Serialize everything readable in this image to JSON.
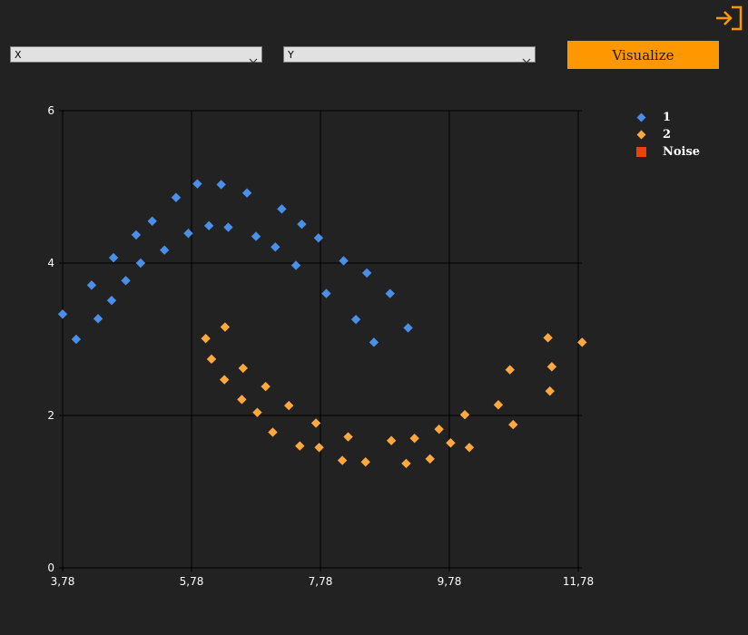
{
  "header": {
    "x_select": {
      "value": "X"
    },
    "y_select": {
      "value": "Y"
    },
    "visualize_label": "Visualize",
    "exit_icon": "sign-in-icon"
  },
  "colors": {
    "background": "#222222",
    "accent": "#ff9800",
    "cluster_1": "#4a8fe8",
    "cluster_2": "#ffa83e",
    "noise": "#e8420d"
  },
  "legend": [
    {
      "label": "1",
      "marker": "diamond",
      "color": "#4a8fe8"
    },
    {
      "label": "2",
      "marker": "diamond",
      "color": "#ffa83e"
    },
    {
      "label": "Noise",
      "marker": "square",
      "color": "#e8420d"
    }
  ],
  "chart_data": {
    "type": "scatter",
    "title": "",
    "xlabel": "",
    "ylabel": "",
    "xlim": [
      3.78,
      11.78
    ],
    "ylim": [
      0,
      6
    ],
    "x_ticks": [
      "3,78",
      "5,78",
      "7,78",
      "9,78",
      "11,78"
    ],
    "y_ticks": [
      "0",
      "2",
      "4",
      "6"
    ],
    "grid": true,
    "legend_position": "right",
    "series": [
      {
        "name": "1",
        "color": "#4a8fe8",
        "points": [
          [
            3.78,
            3.33
          ],
          [
            3.99,
            3.0
          ],
          [
            4.23,
            3.71
          ],
          [
            4.33,
            3.27
          ],
          [
            4.54,
            3.51
          ],
          [
            4.57,
            4.07
          ],
          [
            4.76,
            3.77
          ],
          [
            4.92,
            4.37
          ],
          [
            4.99,
            4.0
          ],
          [
            5.17,
            4.55
          ],
          [
            5.36,
            4.17
          ],
          [
            5.54,
            4.86
          ],
          [
            5.73,
            4.39
          ],
          [
            5.87,
            5.04
          ],
          [
            6.05,
            4.49
          ],
          [
            6.24,
            5.03
          ],
          [
            6.35,
            4.47
          ],
          [
            6.64,
            4.92
          ],
          [
            6.78,
            4.35
          ],
          [
            7.08,
            4.21
          ],
          [
            7.18,
            4.71
          ],
          [
            7.4,
            3.97
          ],
          [
            7.49,
            4.51
          ],
          [
            7.75,
            4.33
          ],
          [
            7.87,
            3.6
          ],
          [
            8.14,
            4.03
          ],
          [
            8.33,
            3.26
          ],
          [
            8.5,
            3.87
          ],
          [
            8.61,
            2.96
          ],
          [
            8.86,
            3.6
          ],
          [
            9.14,
            3.15
          ]
        ]
      },
      {
        "name": "2",
        "color": "#ffa83e",
        "points": [
          [
            6.0,
            3.01
          ],
          [
            6.09,
            2.74
          ],
          [
            6.29,
            2.47
          ],
          [
            6.3,
            3.16
          ],
          [
            6.56,
            2.21
          ],
          [
            6.58,
            2.62
          ],
          [
            6.8,
            2.04
          ],
          [
            6.93,
            2.38
          ],
          [
            7.04,
            1.78
          ],
          [
            7.29,
            2.13
          ],
          [
            7.46,
            1.6
          ],
          [
            7.71,
            1.9
          ],
          [
            7.76,
            1.58
          ],
          [
            8.12,
            1.41
          ],
          [
            8.21,
            1.72
          ],
          [
            8.48,
            1.39
          ],
          [
            8.88,
            1.67
          ],
          [
            9.11,
            1.37
          ],
          [
            9.24,
            1.7
          ],
          [
            9.48,
            1.43
          ],
          [
            9.62,
            1.82
          ],
          [
            9.8,
            1.64
          ],
          [
            10.02,
            2.01
          ],
          [
            10.09,
            1.58
          ],
          [
            10.54,
            2.14
          ],
          [
            10.72,
            2.6
          ],
          [
            10.77,
            1.88
          ],
          [
            11.31,
            3.02
          ],
          [
            11.34,
            2.32
          ],
          [
            11.37,
            2.64
          ],
          [
            11.84,
            2.96
          ]
        ]
      },
      {
        "name": "Noise",
        "color": "#e8420d",
        "points": []
      }
    ]
  }
}
